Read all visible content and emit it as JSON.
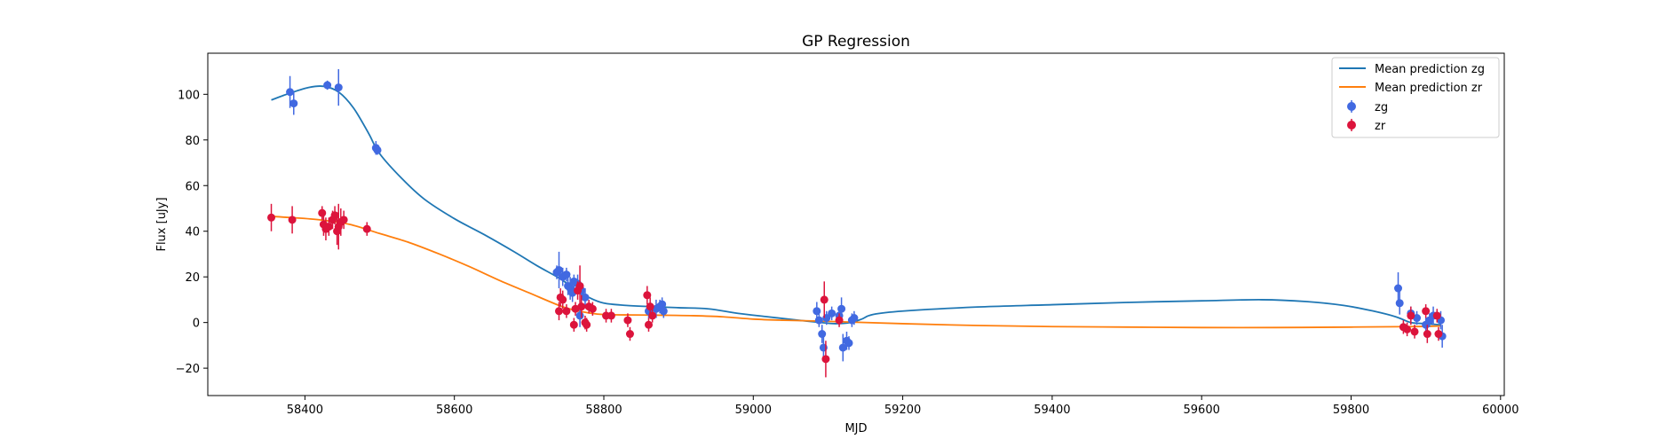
{
  "chart_data": {
    "type": "scatter",
    "title": "GP Regression",
    "xlabel": "MJD",
    "ylabel": "Flux [uJy]",
    "xlim": [
      58270,
      60005
    ],
    "ylim": [
      -32,
      118
    ],
    "xticks": [
      58400,
      58600,
      58800,
      59000,
      59200,
      59400,
      59600,
      59800,
      60000
    ],
    "yticks": [
      -20,
      0,
      20,
      40,
      60,
      80,
      100
    ],
    "grid": false,
    "legend_position": "top-right",
    "legend": [
      "Mean prediction zg",
      "Mean prediction zr",
      "zg",
      "zr"
    ],
    "colors": {
      "line_zg": "#1f77b4",
      "line_zr": "#ff7f0e",
      "points_zg": "#4169e1",
      "points_zr": "#dc143c"
    },
    "lines": [
      {
        "name": "Mean prediction zg",
        "points": [
          [
            58355,
            97.5
          ],
          [
            58380,
            100.5
          ],
          [
            58405,
            103
          ],
          [
            58425,
            103.5
          ],
          [
            58445,
            101
          ],
          [
            58465,
            94
          ],
          [
            58485,
            83
          ],
          [
            58500,
            74
          ],
          [
            58530,
            63
          ],
          [
            58560,
            54
          ],
          [
            58600,
            45.5
          ],
          [
            58640,
            38.5
          ],
          [
            58680,
            31
          ],
          [
            58710,
            25
          ],
          [
            58740,
            19.5
          ],
          [
            58760,
            15
          ],
          [
            58780,
            11
          ],
          [
            58800,
            8.5
          ],
          [
            58830,
            7.5
          ],
          [
            58860,
            7
          ],
          [
            58900,
            6.5
          ],
          [
            58940,
            6
          ],
          [
            58980,
            4
          ],
          [
            59020,
            2.5
          ],
          [
            59060,
            1
          ],
          [
            59090,
            0
          ],
          [
            59110,
            -0.5
          ],
          [
            59130,
            0
          ],
          [
            59145,
            1.5
          ],
          [
            59160,
            3.5
          ],
          [
            59200,
            5
          ],
          [
            59300,
            6.8
          ],
          [
            59400,
            7.8
          ],
          [
            59500,
            8.8
          ],
          [
            59600,
            9.5
          ],
          [
            59680,
            10
          ],
          [
            59740,
            9.2
          ],
          [
            59790,
            7.5
          ],
          [
            59830,
            5
          ],
          [
            59860,
            2.5
          ],
          [
            59880,
            0
          ],
          [
            59900,
            -0.5
          ],
          [
            59920,
            -1
          ]
        ]
      },
      {
        "name": "Mean prediction zr",
        "points": [
          [
            58355,
            46.5
          ],
          [
            58380,
            46
          ],
          [
            58420,
            45
          ],
          [
            58460,
            43
          ],
          [
            58500,
            39
          ],
          [
            58540,
            35
          ],
          [
            58580,
            30
          ],
          [
            58620,
            24.5
          ],
          [
            58660,
            18.5
          ],
          [
            58700,
            13
          ],
          [
            58740,
            7.5
          ],
          [
            58760,
            5.5
          ],
          [
            58780,
            4.2
          ],
          [
            58800,
            3.5
          ],
          [
            58840,
            3.3
          ],
          [
            58880,
            3.2
          ],
          [
            58920,
            3
          ],
          [
            58960,
            2.5
          ],
          [
            59000,
            1.5
          ],
          [
            59040,
            1
          ],
          [
            59080,
            0.7
          ],
          [
            59120,
            0.3
          ],
          [
            59200,
            -0.5
          ],
          [
            59300,
            -1.3
          ],
          [
            59400,
            -1.8
          ],
          [
            59500,
            -2
          ],
          [
            59600,
            -2.2
          ],
          [
            59700,
            -2.2
          ],
          [
            59800,
            -2
          ],
          [
            59880,
            -1.8
          ],
          [
            59920,
            -1.5
          ]
        ]
      }
    ],
    "series": [
      {
        "name": "zg",
        "points": [
          {
            "x": 58380,
            "y": 101,
            "err": 7
          },
          {
            "x": 58385,
            "y": 96,
            "err": 5
          },
          {
            "x": 58430,
            "y": 104,
            "err": 2
          },
          {
            "x": 58445,
            "y": 103,
            "err": 8
          },
          {
            "x": 58495,
            "y": 76.5,
            "err": 3
          },
          {
            "x": 58497,
            "y": 75.5,
            "err": 2
          },
          {
            "x": 58737,
            "y": 22,
            "err": 3
          },
          {
            "x": 58740,
            "y": 23,
            "err": 8
          },
          {
            "x": 58745,
            "y": 20,
            "err": 4
          },
          {
            "x": 58750,
            "y": 21,
            "err": 3
          },
          {
            "x": 58752,
            "y": 16,
            "err": 4
          },
          {
            "x": 58755,
            "y": 15,
            "err": 5
          },
          {
            "x": 58758,
            "y": 13,
            "err": 4
          },
          {
            "x": 58760,
            "y": 18,
            "err": 3
          },
          {
            "x": 58765,
            "y": 17,
            "err": 4
          },
          {
            "x": 58768,
            "y": 3,
            "err": 5
          },
          {
            "x": 58770,
            "y": 14,
            "err": 3
          },
          {
            "x": 58775,
            "y": 11,
            "err": 4
          },
          {
            "x": 58860,
            "y": 5,
            "err": 3
          },
          {
            "x": 58870,
            "y": 6,
            "err": 4
          },
          {
            "x": 58875,
            "y": 7,
            "err": 3
          },
          {
            "x": 58878,
            "y": 8,
            "err": 3
          },
          {
            "x": 58880,
            "y": 5,
            "err": 3
          },
          {
            "x": 59085,
            "y": 5,
            "err": 4
          },
          {
            "x": 59088,
            "y": 1,
            "err": 3
          },
          {
            "x": 59092,
            "y": -5,
            "err": 4
          },
          {
            "x": 59094,
            "y": -11,
            "err": 5
          },
          {
            "x": 59098,
            "y": 2,
            "err": 3
          },
          {
            "x": 59105,
            "y": 4,
            "err": 3
          },
          {
            "x": 59115,
            "y": 3,
            "err": 4
          },
          {
            "x": 59118,
            "y": 6,
            "err": 5
          },
          {
            "x": 59120,
            "y": -11,
            "err": 6
          },
          {
            "x": 59125,
            "y": -8,
            "err": 4
          },
          {
            "x": 59128,
            "y": -9,
            "err": 3
          },
          {
            "x": 59132,
            "y": 1,
            "err": 3
          },
          {
            "x": 59135,
            "y": 2,
            "err": 3
          },
          {
            "x": 59863,
            "y": 15,
            "err": 7
          },
          {
            "x": 59865,
            "y": 8.5,
            "err": 5
          },
          {
            "x": 59880,
            "y": 4,
            "err": 3
          },
          {
            "x": 59888,
            "y": 2,
            "err": 3
          },
          {
            "x": 59900,
            "y": -1,
            "err": 3
          },
          {
            "x": 59905,
            "y": 1,
            "err": 3
          },
          {
            "x": 59910,
            "y": 3,
            "err": 4
          },
          {
            "x": 59920,
            "y": 1,
            "err": 4
          },
          {
            "x": 59922,
            "y": -6,
            "err": 5
          }
        ]
      },
      {
        "name": "zr",
        "points": [
          {
            "x": 58355,
            "y": 46,
            "err": 6
          },
          {
            "x": 58383,
            "y": 45,
            "err": 6
          },
          {
            "x": 58423,
            "y": 48,
            "err": 3
          },
          {
            "x": 58425,
            "y": 43,
            "err": 5
          },
          {
            "x": 58428,
            "y": 41,
            "err": 5
          },
          {
            "x": 58432,
            "y": 42,
            "err": 4
          },
          {
            "x": 58437,
            "y": 45,
            "err": 4
          },
          {
            "x": 58440,
            "y": 47,
            "err": 4
          },
          {
            "x": 58443,
            "y": 40,
            "err": 6
          },
          {
            "x": 58445,
            "y": 42,
            "err": 10
          },
          {
            "x": 58448,
            "y": 44,
            "err": 6
          },
          {
            "x": 58452,
            "y": 45,
            "err": 4
          },
          {
            "x": 58483,
            "y": 41,
            "err": 3
          },
          {
            "x": 58740,
            "y": 5,
            "err": 4
          },
          {
            "x": 58742,
            "y": 11,
            "err": 4
          },
          {
            "x": 58745,
            "y": 10,
            "err": 4
          },
          {
            "x": 58750,
            "y": 5,
            "err": 3
          },
          {
            "x": 58760,
            "y": -1,
            "err": 3
          },
          {
            "x": 58762,
            "y": 6,
            "err": 3
          },
          {
            "x": 58765,
            "y": 14,
            "err": 4
          },
          {
            "x": 58768,
            "y": 16,
            "err": 9
          },
          {
            "x": 58770,
            "y": 7,
            "err": 5
          },
          {
            "x": 58775,
            "y": 0,
            "err": 3
          },
          {
            "x": 58777,
            "y": -1,
            "err": 3
          },
          {
            "x": 58780,
            "y": 7,
            "err": 3
          },
          {
            "x": 58785,
            "y": 6,
            "err": 3
          },
          {
            "x": 58803,
            "y": 3,
            "err": 3
          },
          {
            "x": 58810,
            "y": 3,
            "err": 3
          },
          {
            "x": 58832,
            "y": 1,
            "err": 3
          },
          {
            "x": 58835,
            "y": -5,
            "err": 3
          },
          {
            "x": 58858,
            "y": 12,
            "err": 4
          },
          {
            "x": 58860,
            "y": -1,
            "err": 3
          },
          {
            "x": 58862,
            "y": 7,
            "err": 4
          },
          {
            "x": 58865,
            "y": 3,
            "err": 3
          },
          {
            "x": 59095,
            "y": 10,
            "err": 8
          },
          {
            "x": 59097,
            "y": -16,
            "err": 8
          },
          {
            "x": 59115,
            "y": 1,
            "err": 3
          },
          {
            "x": 59870,
            "y": -2,
            "err": 3
          },
          {
            "x": 59875,
            "y": -3,
            "err": 3
          },
          {
            "x": 59880,
            "y": 3,
            "err": 4
          },
          {
            "x": 59885,
            "y": -4,
            "err": 3
          },
          {
            "x": 59900,
            "y": 5,
            "err": 3
          },
          {
            "x": 59902,
            "y": -5,
            "err": 4
          },
          {
            "x": 59915,
            "y": 3,
            "err": 3
          },
          {
            "x": 59917,
            "y": -5,
            "err": 3
          }
        ]
      }
    ]
  }
}
